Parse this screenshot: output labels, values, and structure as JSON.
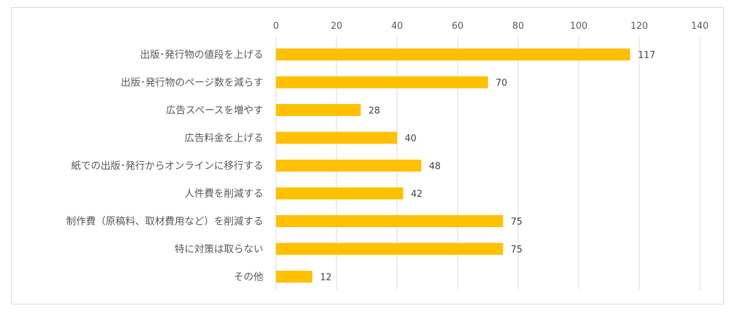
{
  "chart_data": {
    "type": "bar",
    "orientation": "horizontal",
    "title": "",
    "xlabel": "",
    "ylabel": "",
    "xlim": [
      0,
      140
    ],
    "xticks": [
      0,
      20,
      40,
      60,
      80,
      100,
      120,
      140
    ],
    "x_axis_position": "top",
    "grid": true,
    "legend": "none",
    "bar_color": "#FFC000",
    "categories": [
      "出版･発行物の値段を上げる",
      "出版･発行物のページ数を減らす",
      "広告スペースを増やす",
      "広告料金を上げる",
      "紙での出版･発行からオンラインに移行する",
      "人件費を削減する",
      "制作費（原稿料、取材費用など）を削減する",
      "特に対策は取らない",
      "その他"
    ],
    "values": [
      117,
      70,
      28,
      40,
      48,
      42,
      75,
      75,
      12
    ]
  }
}
